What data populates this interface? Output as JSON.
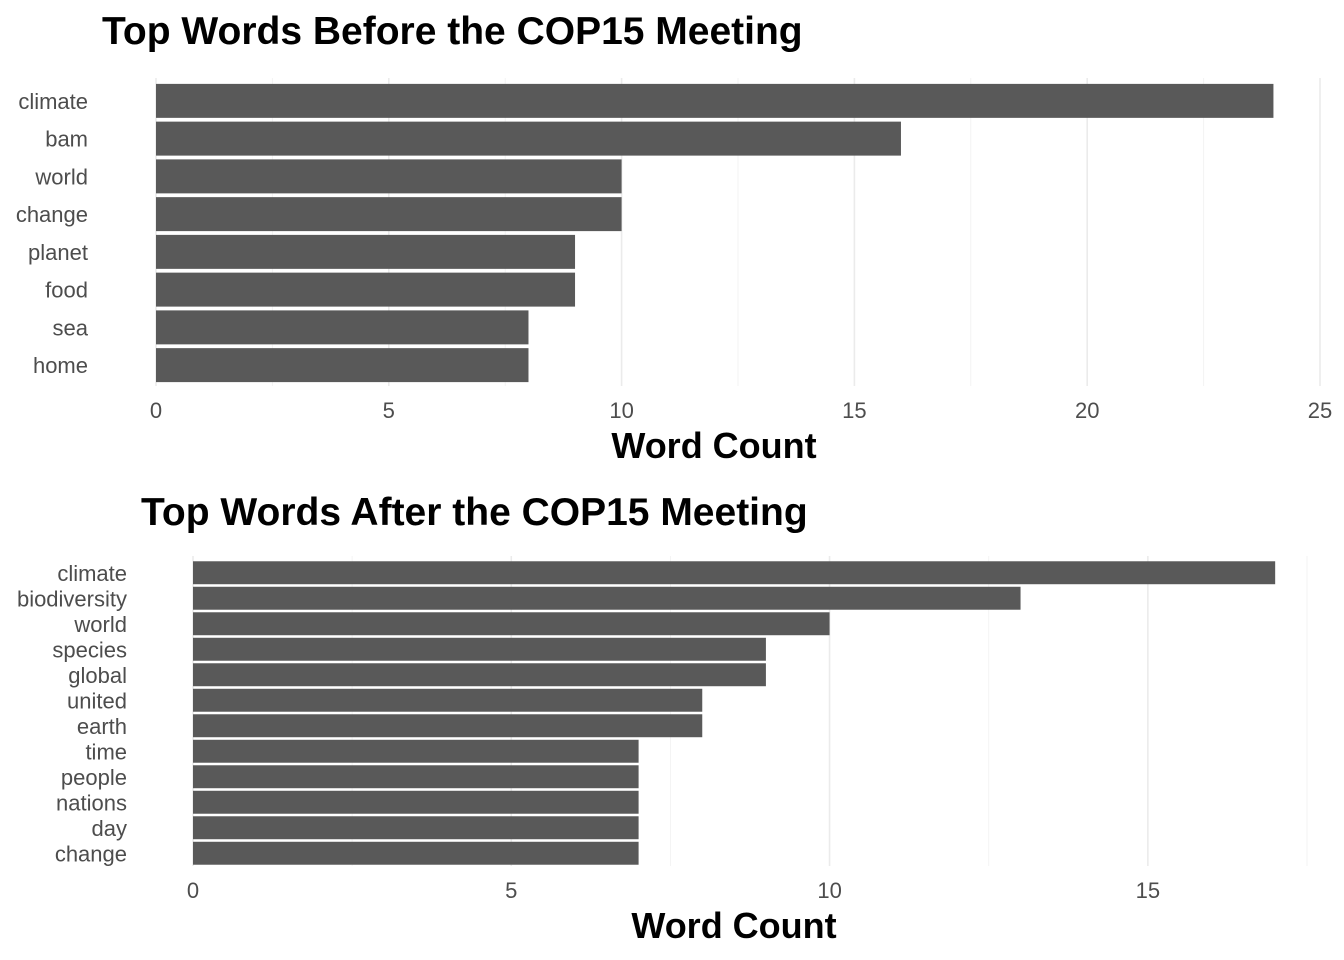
{
  "chart_data": [
    {
      "type": "bar",
      "orientation": "horizontal",
      "title": "Top Words Before the COP15 Meeting",
      "xlabel": "Word Count",
      "ylabel": "",
      "xlim": [
        0,
        25
      ],
      "xticks": [
        0,
        5,
        10,
        15,
        20,
        25
      ],
      "grid": true,
      "categories": [
        "climate",
        "bam",
        "world",
        "change",
        "planet",
        "food",
        "sea",
        "home"
      ],
      "values": [
        24,
        16,
        10,
        10,
        9,
        9,
        8,
        8
      ],
      "bar_color": "#595959"
    },
    {
      "type": "bar",
      "orientation": "horizontal",
      "title": "Top Words After the COP15 Meeting",
      "xlabel": "Word Count",
      "ylabel": "",
      "xlim": [
        0,
        17.5
      ],
      "xticks": [
        0,
        5,
        10,
        15
      ],
      "grid": true,
      "categories": [
        "climate",
        "biodiversity",
        "world",
        "species",
        "global",
        "united",
        "earth",
        "time",
        "people",
        "nations",
        "day",
        "change"
      ],
      "values": [
        17,
        13,
        10,
        9,
        9,
        8,
        8,
        7,
        7,
        7,
        7,
        7
      ],
      "bar_color": "#595959"
    }
  ]
}
